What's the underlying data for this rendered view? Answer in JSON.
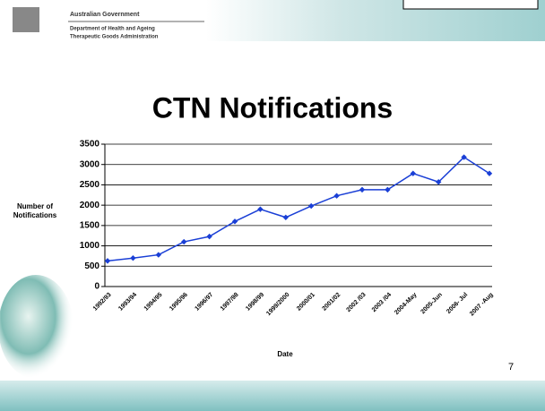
{
  "header": {
    "lines": [
      "Australian Government",
      "Department of Health and Ageing",
      "Therapeutic Goods Administration"
    ]
  },
  "page_number": "7",
  "chart_data": {
    "type": "line",
    "title": "CTN Notifications",
    "y_label": "Number of Notifications",
    "x_label": "Date",
    "categories": [
      "1992/93",
      "1993/94",
      "1994/95",
      "1995/96",
      "1996/97",
      "1997/98",
      "1998/99",
      "1999/2000",
      "2000/01",
      "2001/02",
      "2002 /03",
      "2003 /04",
      "2004-May",
      "2005-Jun",
      "2006- Jul",
      "2007 -Aug"
    ],
    "values": [
      630,
      700,
      780,
      1100,
      1230,
      1600,
      1900,
      1700,
      1980,
      2230,
      2380,
      2380,
      2780,
      2570,
      3180,
      2780
    ],
    "color": "#1a3fd6",
    "marker": "diamond",
    "ylim": [
      0,
      3500
    ],
    "yticks": [
      0,
      500,
      1000,
      1500,
      2000,
      2500,
      3000,
      3500
    ],
    "grid": true
  }
}
